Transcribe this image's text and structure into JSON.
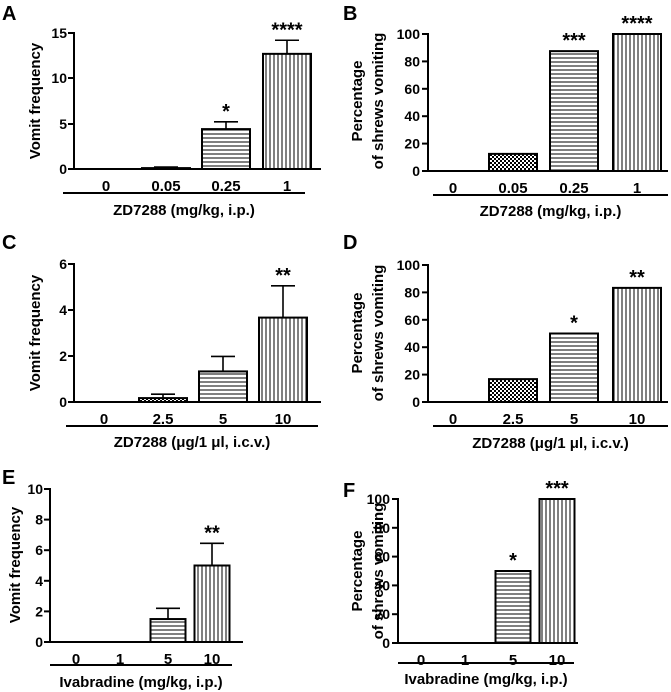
{
  "chart_data": [
    {
      "panel": "A",
      "type": "bar",
      "ylabel": "Vomit frequency",
      "xlabel": "ZD7288 (mg/kg, i.p.)",
      "categories": [
        "0",
        "0.05",
        "0.25",
        "1"
      ],
      "values": [
        0,
        0.1,
        4.4,
        12.7
      ],
      "errors": [
        0,
        0.12,
        0.8,
        1.5
      ],
      "patterns": [
        "none",
        "check",
        "horizontal",
        "vertical"
      ],
      "significance": [
        "",
        "",
        "*",
        "****"
      ],
      "ylim": [
        0,
        15
      ],
      "yticks": [
        "0",
        "5",
        "10",
        "15"
      ]
    },
    {
      "panel": "B",
      "type": "bar",
      "ylabel": [
        "Percentage",
        "of shrews vomiting"
      ],
      "xlabel": "ZD7288 (mg/kg, i.p.)",
      "categories": [
        "0",
        "0.05",
        "0.25",
        "1"
      ],
      "values": [
        0,
        12.5,
        87.5,
        100
      ],
      "errors": [
        0,
        0,
        0,
        0
      ],
      "patterns": [
        "none",
        "check",
        "horizontal",
        "vertical"
      ],
      "significance": [
        "",
        "",
        "***",
        "****"
      ],
      "ylim": [
        0,
        100
      ],
      "yticks": [
        "0",
        "20",
        "40",
        "60",
        "80",
        "100"
      ]
    },
    {
      "panel": "C",
      "type": "bar",
      "ylabel": "Vomit frequency",
      "xlabel": "ZD7288 (μg/1 μl, i.c.v.)",
      "categories": [
        "0",
        "2.5",
        "5",
        "10"
      ],
      "values": [
        0,
        0.17,
        1.33,
        3.67
      ],
      "errors": [
        0,
        0.17,
        0.65,
        1.38
      ],
      "patterns": [
        "none",
        "check",
        "horizontal",
        "vertical"
      ],
      "significance": [
        "",
        "",
        "",
        "**"
      ],
      "ylim": [
        0,
        6
      ],
      "yticks": [
        "0",
        "2",
        "4",
        "6"
      ]
    },
    {
      "panel": "D",
      "type": "bar",
      "ylabel": [
        "Percentage",
        "of shrews vomiting"
      ],
      "xlabel": "ZD7288 (μg/1 μl, i.c.v.)",
      "categories": [
        "0",
        "2.5",
        "5",
        "10"
      ],
      "values": [
        0,
        16.7,
        50,
        83.3
      ],
      "errors": [
        0,
        0,
        0,
        0
      ],
      "patterns": [
        "none",
        "check",
        "horizontal",
        "vertical"
      ],
      "significance": [
        "",
        "",
        "*",
        "**"
      ],
      "ylim": [
        0,
        100
      ],
      "yticks": [
        "0",
        "20",
        "40",
        "60",
        "80",
        "100"
      ]
    },
    {
      "panel": "E",
      "type": "bar",
      "ylabel": "Vomit frequency",
      "xlabel": "Ivabradine (mg/kg, i.p.)",
      "categories": [
        "0",
        "1",
        "5",
        "10"
      ],
      "values": [
        0,
        0,
        1.5,
        5.0
      ],
      "errors": [
        0,
        0,
        0.7,
        1.45
      ],
      "patterns": [
        "none",
        "none",
        "horizontal",
        "vertical"
      ],
      "significance": [
        "",
        "",
        "",
        "**"
      ],
      "ylim": [
        0,
        10
      ],
      "yticks": [
        "0",
        "2",
        "4",
        "6",
        "8",
        "10"
      ]
    },
    {
      "panel": "F",
      "type": "bar",
      "ylabel": [
        "Percentage",
        "of shrews vomiting"
      ],
      "xlabel": "Ivabradine (mg/kg, i.p.)",
      "categories": [
        "0",
        "1",
        "5",
        "10"
      ],
      "values": [
        0,
        0,
        50,
        100
      ],
      "errors": [
        0,
        0,
        0,
        0
      ],
      "patterns": [
        "none",
        "none",
        "horizontal",
        "vertical"
      ],
      "significance": [
        "",
        "",
        "*",
        "***"
      ],
      "ylim": [
        0,
        100
      ],
      "yticks": [
        "0",
        "20",
        "40",
        "60",
        "80",
        "100"
      ]
    }
  ]
}
